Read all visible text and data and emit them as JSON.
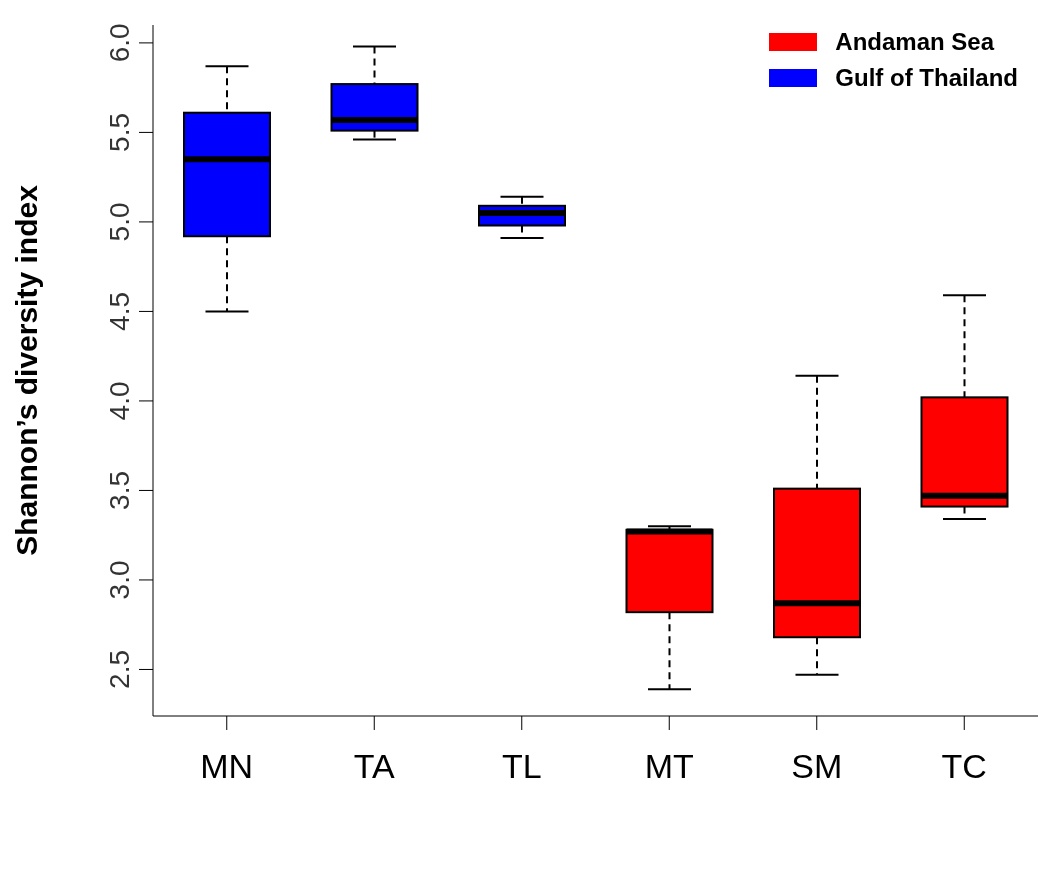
{
  "chart_data": {
    "type": "box",
    "ylabel": "Shannon’s diversity index",
    "categories": [
      "MN",
      "TA",
      "TL",
      "MT",
      "SM",
      "TC"
    ],
    "series": [
      {
        "name": "Andaman Sea",
        "color": "#ff0000",
        "boxes": [
          null,
          null,
          null,
          {
            "low": 2.39,
            "q1": 2.82,
            "median": 3.27,
            "q3": 3.28,
            "high": 3.3
          },
          {
            "low": 2.47,
            "q1": 2.68,
            "median": 2.87,
            "q3": 3.51,
            "high": 4.14
          },
          {
            "low": 3.34,
            "q1": 3.41,
            "median": 3.47,
            "q3": 4.02,
            "high": 4.59
          }
        ]
      },
      {
        "name": "Gulf of Thailand",
        "color": "#0000ff",
        "boxes": [
          {
            "low": 4.5,
            "q1": 4.92,
            "median": 5.35,
            "q3": 5.61,
            "high": 5.87
          },
          {
            "low": 5.46,
            "q1": 5.51,
            "median": 5.57,
            "q3": 5.77,
            "high": 5.98
          },
          {
            "low": 4.91,
            "q1": 4.98,
            "median": 5.05,
            "q3": 5.09,
            "high": 5.14
          },
          null,
          null,
          null
        ]
      }
    ],
    "ylim": [
      2.24,
      6.1
    ],
    "yticks": [
      {
        "value": 2.5,
        "label": "2.5"
      },
      {
        "value": 3,
        "label": "3.0"
      },
      {
        "value": 3.5,
        "label": "3.5"
      },
      {
        "value": 4,
        "label": "4.0"
      },
      {
        "value": 4.5,
        "label": "4.5"
      },
      {
        "value": 5,
        "label": "5.0"
      },
      {
        "value": 5.5,
        "label": "5.5"
      },
      {
        "value": 6,
        "label": "6.0"
      }
    ],
    "legend": "top right",
    "grid": false
  }
}
